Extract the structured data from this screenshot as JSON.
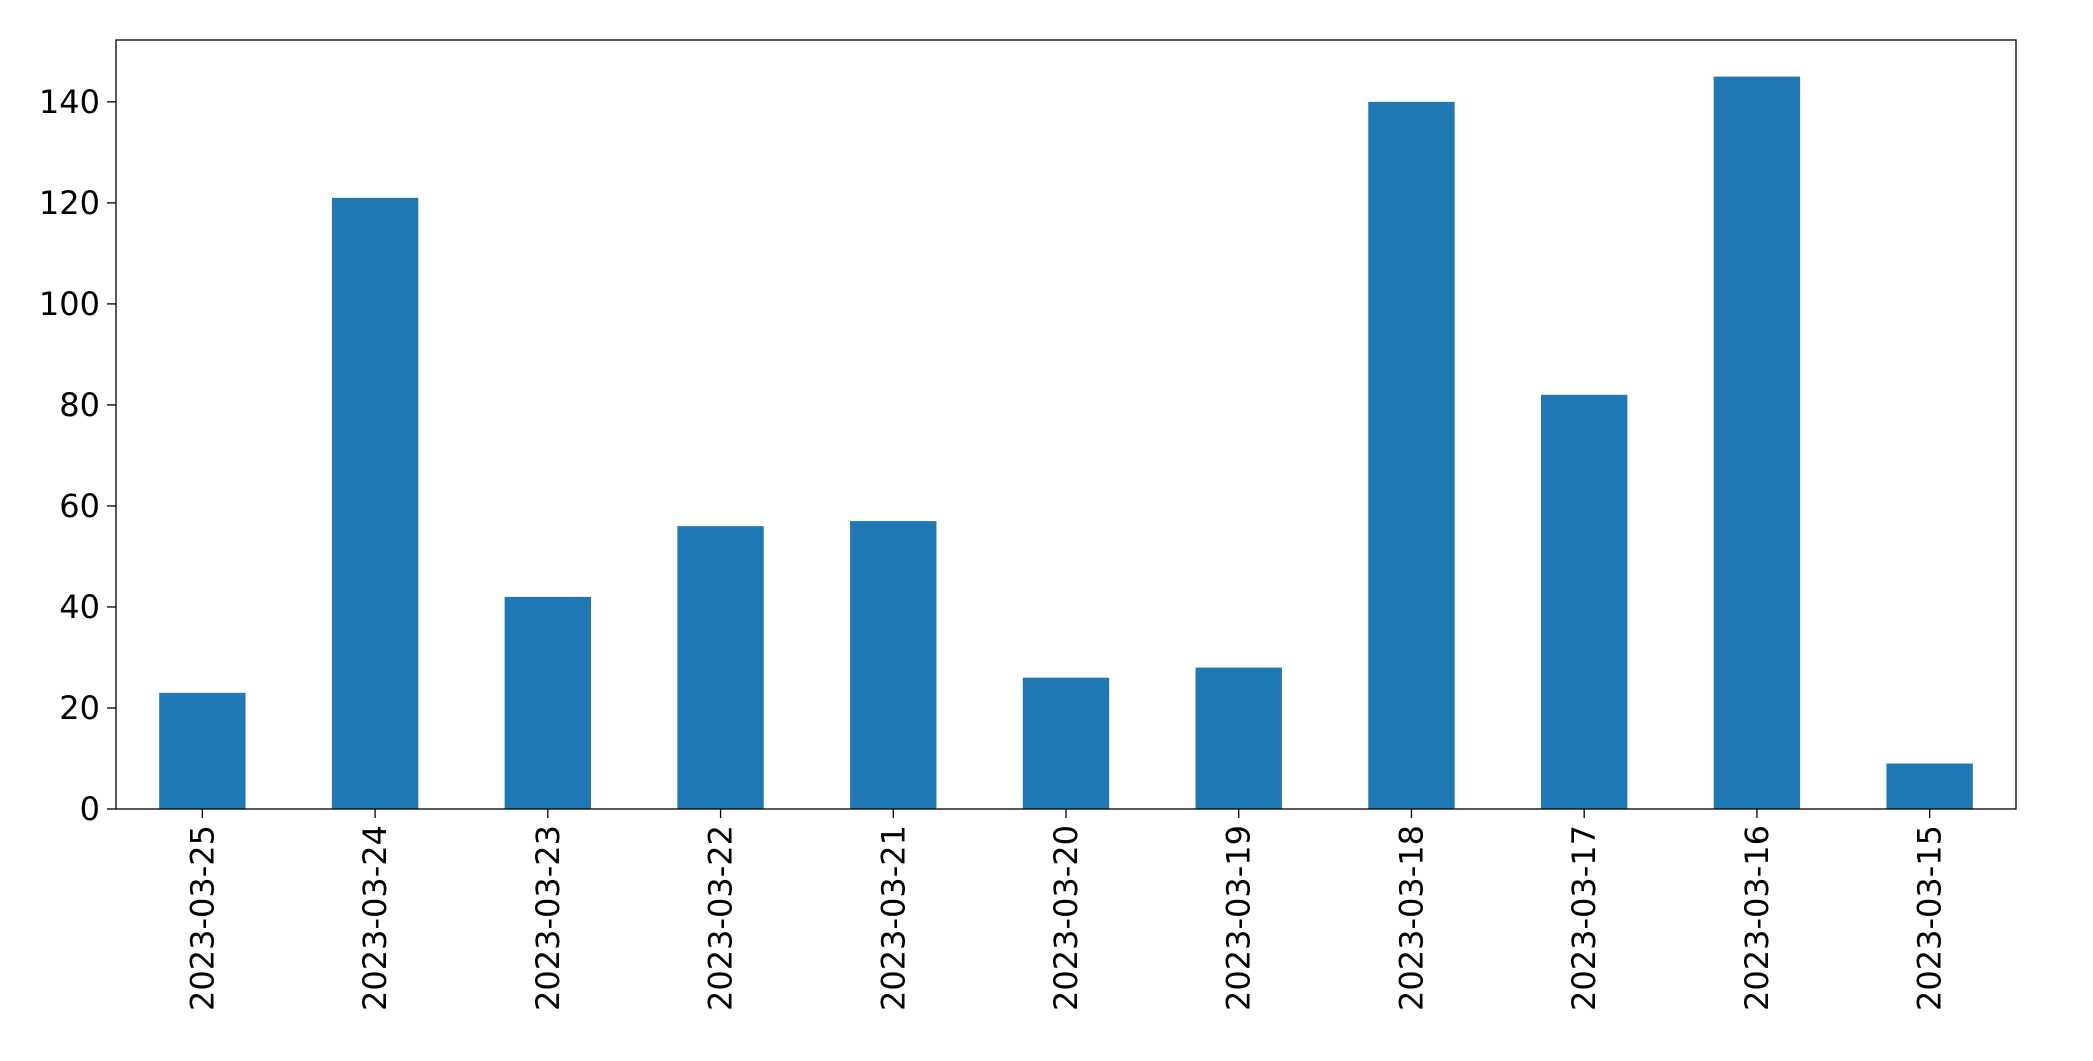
{
  "chart_data": {
    "type": "bar",
    "categories": [
      "2023-03-25",
      "2023-03-24",
      "2023-03-23",
      "2023-03-22",
      "2023-03-21",
      "2023-03-20",
      "2023-03-19",
      "2023-03-18",
      "2023-03-17",
      "2023-03-16",
      "2023-03-15"
    ],
    "values": [
      23,
      121,
      42,
      56,
      57,
      26,
      28,
      140,
      82,
      145,
      9
    ],
    "color": "#1f77b4",
    "ylim": [
      0,
      152.25
    ],
    "yticks": [
      0,
      20,
      40,
      60,
      80,
      100,
      120,
      140
    ],
    "grid": false
  }
}
